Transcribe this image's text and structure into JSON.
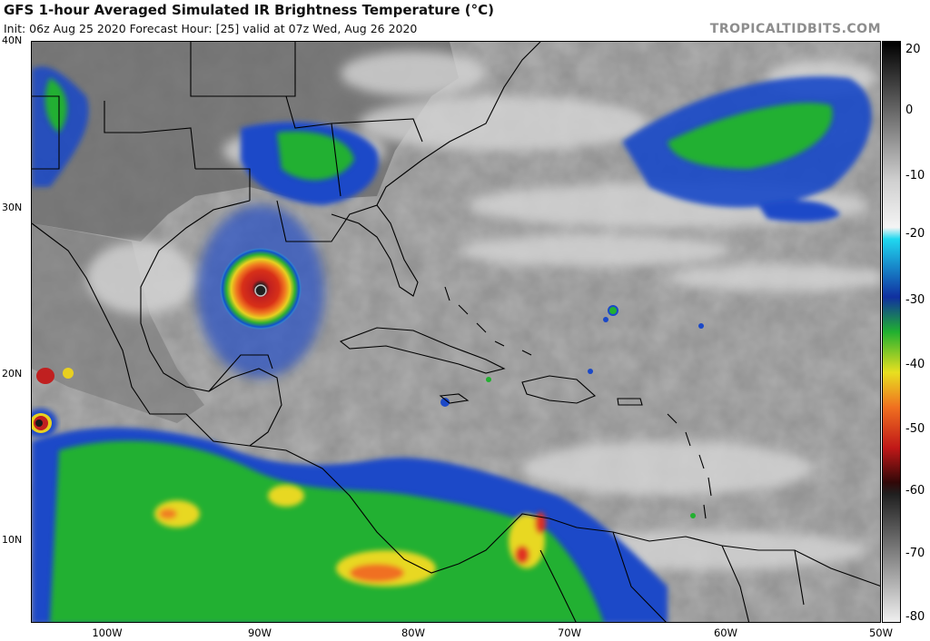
{
  "header": {
    "title": "GFS 1-hour Averaged Simulated IR Brightness Temperature (°C)",
    "subtitle": "Init: 06z Aug 25 2020   Forecast Hour: [25]   valid at 07z Wed, Aug 26 2020",
    "brand": "TROPICALTIDBITS.COM"
  },
  "map": {
    "lat_labels": [
      "40N",
      "30N",
      "20N",
      "10N"
    ],
    "lon_labels": [
      "100W",
      "90W",
      "80W",
      "70W",
      "60W",
      "50W"
    ],
    "colors": {
      "warm_gray": "#9c9c9c",
      "land_dark": "#6e6e6e",
      "cloud_light": "#d8d8d8",
      "cyan": "#22d0f0",
      "blue": "#1040c8",
      "green": "#20b030",
      "yellow": "#e8e020",
      "orange": "#f08020",
      "red": "#c81818",
      "dark_red": "#501010",
      "eye_dark": "#101010"
    }
  },
  "colorbar": {
    "labels": [
      "20",
      "0",
      "-10",
      "-20",
      "-30",
      "-40",
      "-50",
      "-60",
      "-70",
      "-80"
    ],
    "values": [
      20,
      0,
      -10,
      -20,
      -30,
      -40,
      -50,
      -60,
      -70,
      -80
    ]
  }
}
